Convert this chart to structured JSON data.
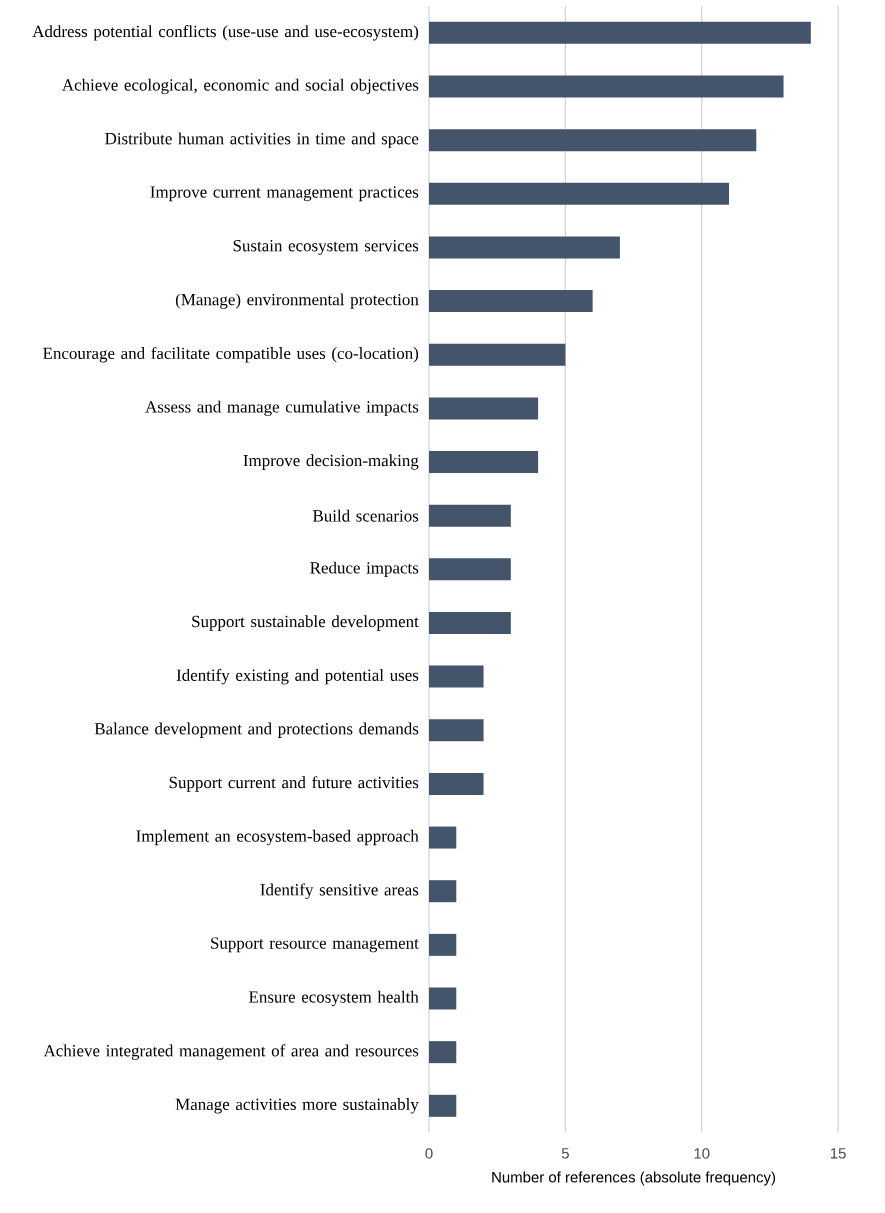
{
  "chart_data": {
    "type": "bar",
    "orientation": "horizontal",
    "categories": [
      "Address potential conflicts (use-use and use-ecosystem)",
      "Achieve ecological, economic and social objectives",
      "Distribute human activities in time and space",
      "Improve current management practices",
      "Sustain ecosystem services",
      "(Manage) environmental protection",
      "Encourage and facilitate compatible uses (co-location)",
      "Assess and manage cumulative impacts",
      "Improve decision-making",
      "Build scenarios",
      "Reduce impacts",
      "Support sustainable development",
      "Identify existing and potential uses",
      "Balance development and protections demands",
      "Support current and future activities",
      "Implement an ecosystem-based approach",
      "Identify sensitive areas",
      "Support resource management",
      "Ensure ecosystem health",
      "Achieve integrated management of area and resources",
      "Manage activities more sustainably"
    ],
    "values": [
      14,
      13,
      12,
      11,
      7,
      6,
      5,
      4,
      4,
      3,
      3,
      3,
      2,
      2,
      2,
      1,
      1,
      1,
      1,
      1,
      1
    ],
    "color": "#44546a",
    "xlim": [
      0,
      15
    ],
    "xticks": [
      0,
      5,
      10,
      15
    ],
    "xlabel": "Number of references (absolute frequency)",
    "grid": "x"
  }
}
